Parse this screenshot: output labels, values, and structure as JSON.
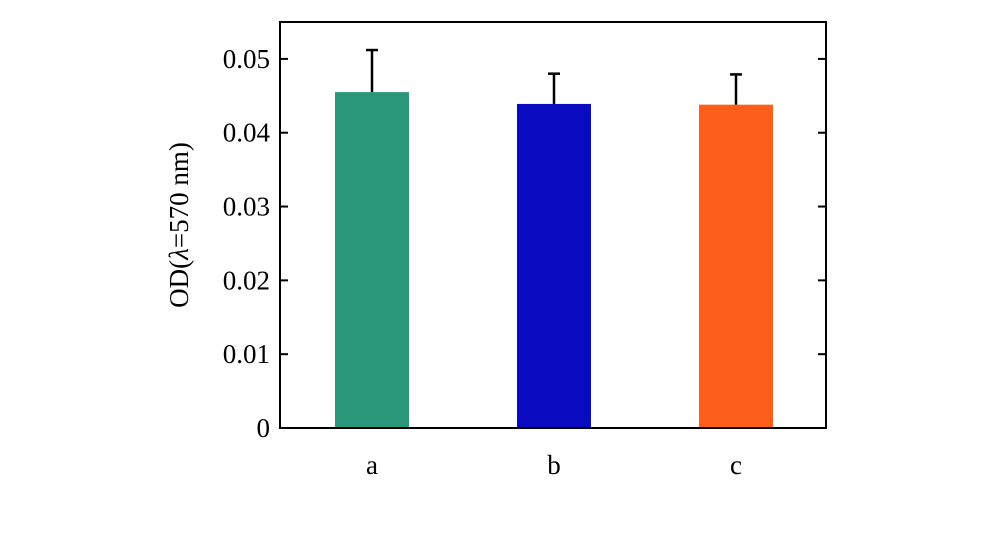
{
  "chart_data": {
    "type": "bar",
    "title": "",
    "xlabel": "",
    "ylabel_prefix": "OD(",
    "ylabel_symbol": "λ",
    "ylabel_suffix": "=570 nm)",
    "categories": [
      "a",
      "b",
      "c"
    ],
    "values": [
      0.0455,
      0.0439,
      0.0438
    ],
    "error_upper": [
      0.0057,
      0.0041,
      0.0041
    ],
    "colors": [
      "#2a967a",
      "#0a0ac0",
      "#ff5e1a"
    ],
    "ylim": [
      0,
      0.055
    ],
    "yticks": [
      0,
      0.01,
      0.02,
      0.03,
      0.04,
      0.05
    ],
    "ytick_labels": [
      "0",
      "0.01",
      "0.02",
      "0.03",
      "0.04",
      "0.05"
    ],
    "grid": false,
    "legend": "none"
  }
}
